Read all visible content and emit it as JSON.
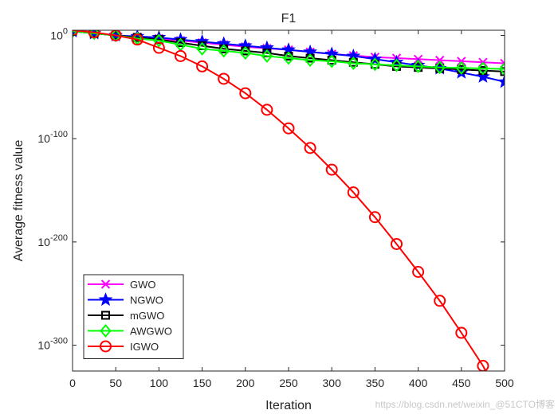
{
  "chart_data": {
    "type": "line",
    "title": "F1",
    "xlabel": "Iteration",
    "ylabel": "Average fitness value",
    "xlim": [
      0,
      500
    ],
    "ylim_log10": [
      -325,
      5
    ],
    "xticks": [
      0,
      50,
      100,
      150,
      200,
      250,
      300,
      350,
      400,
      450,
      500
    ],
    "yticks": [
      {
        "exp": 0,
        "base": "10",
        "sup": "0"
      },
      {
        "exp": -100,
        "base": "10",
        "sup": "-100"
      },
      {
        "exp": -200,
        "base": "10",
        "sup": "-200"
      },
      {
        "exp": -300,
        "base": "10",
        "sup": "-300"
      }
    ],
    "legend_position": "bottom-left",
    "series": [
      {
        "name": "GWO",
        "color": "#ff00ff",
        "marker": "x",
        "x": [
          0,
          25,
          50,
          75,
          100,
          125,
          150,
          175,
          200,
          225,
          250,
          275,
          300,
          325,
          350,
          375,
          400,
          425,
          450,
          475,
          500
        ],
        "log10_y": [
          4,
          2,
          0,
          -1.5,
          -3,
          -5,
          -7,
          -9,
          -11,
          -12.5,
          -14,
          -16,
          -18,
          -19.5,
          -21,
          -22,
          -23,
          -24,
          -25,
          -26,
          -27
        ]
      },
      {
        "name": "NGWO",
        "color": "#0000ff",
        "marker": "star",
        "x": [
          0,
          25,
          50,
          75,
          100,
          125,
          150,
          175,
          200,
          225,
          250,
          275,
          300,
          325,
          350,
          375,
          400,
          425,
          450,
          475,
          500
        ],
        "log10_y": [
          4,
          2,
          0,
          -1,
          -2,
          -4,
          -6,
          -8,
          -10,
          -12,
          -14,
          -16,
          -18,
          -20,
          -23,
          -26,
          -29,
          -32,
          -36,
          -40,
          -45
        ]
      },
      {
        "name": "mGWO",
        "color": "#000000",
        "marker": "square",
        "x": [
          0,
          25,
          50,
          75,
          100,
          125,
          150,
          175,
          200,
          225,
          250,
          275,
          300,
          325,
          350,
          375,
          400,
          425,
          450,
          475,
          500
        ],
        "log10_y": [
          4,
          2,
          0,
          -2,
          -4,
          -7,
          -10,
          -13,
          -15,
          -17,
          -20,
          -22,
          -24,
          -26,
          -28,
          -30,
          -31,
          -32,
          -33,
          -34,
          -35
        ]
      },
      {
        "name": "AWGWO",
        "color": "#00ff00",
        "marker": "diamond",
        "x": [
          0,
          25,
          50,
          75,
          100,
          125,
          150,
          175,
          200,
          225,
          250,
          275,
          300,
          325,
          350,
          375,
          400,
          425,
          450,
          475,
          500
        ],
        "log10_y": [
          4,
          2,
          0,
          -3,
          -5,
          -9,
          -13,
          -15,
          -17,
          -20,
          -22,
          -24,
          -25,
          -27,
          -28,
          -29,
          -30,
          -31,
          -31.5,
          -32,
          -32.5
        ]
      },
      {
        "name": "IGWO",
        "color": "#ff0000",
        "marker": "circle",
        "x": [
          0,
          25,
          50,
          75,
          100,
          125,
          150,
          175,
          200,
          225,
          250,
          275,
          300,
          325,
          350,
          375,
          400,
          425,
          450,
          475
        ],
        "log10_y": [
          5,
          3,
          0,
          -4,
          -12,
          -20,
          -30,
          -42,
          -56,
          -72,
          -90,
          -109,
          -130,
          -152,
          -176,
          -202,
          -229,
          -257,
          -288,
          -320
        ]
      }
    ]
  },
  "watermark": "https://blog.csdn.net/weixin_@51CTO博客"
}
